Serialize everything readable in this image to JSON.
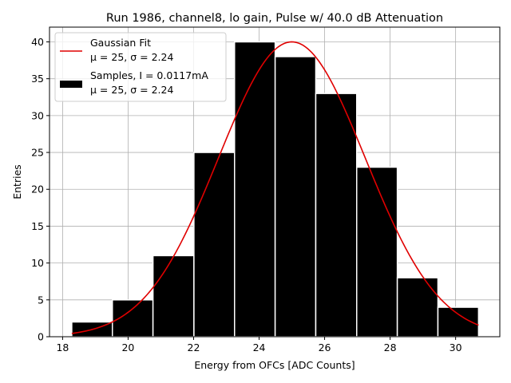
{
  "chart_data": {
    "type": "bar",
    "title": "Run 1986, channel8, lo gain, Pulse w/ 40.0 dB Attenuation",
    "xlabel": "Energy from OFCs [ADC Counts]",
    "ylabel": "Entries",
    "xlim": [
      17.6,
      31.35
    ],
    "ylim": [
      0,
      42
    ],
    "xticks": [
      18,
      20,
      22,
      24,
      26,
      28,
      30
    ],
    "yticks": [
      0,
      5,
      10,
      15,
      20,
      25,
      30,
      35,
      40
    ],
    "grid": true,
    "legend_position": "top-left",
    "histogram": {
      "name": "Samples",
      "legend_label": "Samples, I = 0.0117mA",
      "legend_sublabel": "μ = 25, σ = 2.24",
      "color": "#000000",
      "edgecolor": "#ffffff",
      "bin_edges": [
        18.28,
        19.52,
        20.76,
        22.01,
        23.25,
        24.49,
        25.73,
        26.98,
        28.22,
        29.46,
        30.7
      ],
      "counts": [
        2,
        5,
        11,
        25,
        40,
        38,
        33,
        23,
        8,
        4
      ]
    },
    "fit": {
      "name": "Gaussian Fit",
      "legend_label": "Gaussian Fit",
      "legend_sublabel": "μ = 25, σ = 2.24",
      "color": "#e00000",
      "amplitude": 40.0,
      "mu": 25,
      "sigma": 2.24,
      "x_range": [
        18.28,
        30.7
      ]
    }
  }
}
